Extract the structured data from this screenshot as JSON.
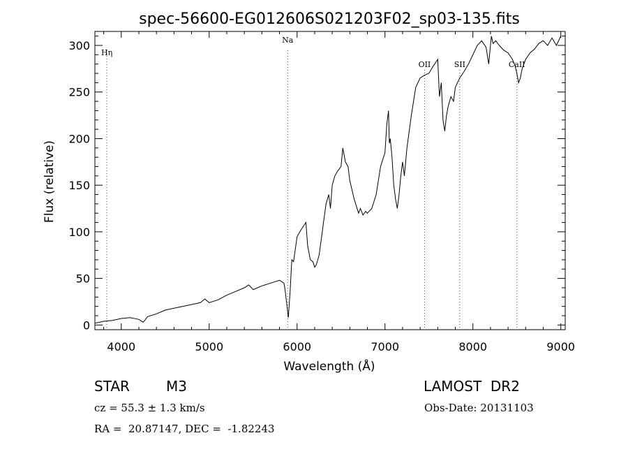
{
  "chart_data": {
    "type": "line",
    "title": "spec-56600-EG012606S021203F02_sp03-135.fits",
    "xlabel": "Wavelength (Å)",
    "ylabel": "Flux (relative)",
    "xlim": [
      3700,
      9050
    ],
    "ylim": [
      -5,
      315
    ],
    "xticks": [
      "4000",
      "5000",
      "6000",
      "7000",
      "8000",
      "9000"
    ],
    "yticks": [
      "0",
      "50",
      "100",
      "150",
      "200",
      "250",
      "300"
    ],
    "grid": false,
    "line_color": "#000000",
    "series": [
      {
        "x": [
          3700,
          3800,
          3900,
          4000,
          4100,
          4200,
          4250,
          4300,
          4400,
          4500,
          4600,
          4700,
          4800,
          4900,
          4950,
          5000,
          5100,
          5200,
          5300,
          5400,
          5450,
          5500,
          5600,
          5700,
          5800,
          5850,
          5860,
          5880,
          5900,
          5920,
          5940,
          5960,
          6000,
          6050,
          6100,
          6120,
          6150,
          6180,
          6200,
          6220,
          6250,
          6280,
          6300,
          6330,
          6360,
          6380,
          6400,
          6430,
          6460,
          6500,
          6520,
          6550,
          6580,
          6600,
          6650,
          6700,
          6720,
          6750,
          6780,
          6800,
          6850,
          6900,
          6950,
          7000,
          7020,
          7040,
          7050,
          7060,
          7080,
          7100,
          7120,
          7140,
          7160,
          7180,
          7200,
          7220,
          7250,
          7300,
          7350,
          7400,
          7450,
          7500,
          7550,
          7580,
          7600,
          7620,
          7640,
          7660,
          7680,
          7700,
          7720,
          7750,
          7780,
          7800,
          7850,
          7900,
          7950,
          8000,
          8050,
          8100,
          8150,
          8180,
          8200,
          8210,
          8230,
          8260,
          8300,
          8350,
          8400,
          8450,
          8480,
          8500,
          8520,
          8540,
          8560,
          8600,
          8650,
          8700,
          8750,
          8800,
          8850,
          8900,
          8950,
          9000
        ],
        "y": [
          2,
          4,
          5,
          7,
          8,
          6,
          3,
          9,
          12,
          16,
          18,
          20,
          22,
          24,
          28,
          24,
          27,
          32,
          36,
          40,
          43,
          38,
          42,
          45,
          48,
          45,
          40,
          25,
          8,
          35,
          70,
          68,
          95,
          103,
          110,
          85,
          70,
          68,
          62,
          65,
          75,
          95,
          110,
          130,
          140,
          125,
          150,
          160,
          165,
          170,
          190,
          175,
          170,
          155,
          135,
          120,
          125,
          118,
          122,
          120,
          125,
          140,
          170,
          185,
          215,
          230,
          195,
          200,
          180,
          150,
          135,
          125,
          140,
          160,
          175,
          160,
          190,
          225,
          255,
          265,
          268,
          270,
          278,
          282,
          285,
          245,
          260,
          220,
          208,
          225,
          235,
          245,
          240,
          255,
          265,
          272,
          280,
          290,
          300,
          305,
          298,
          280,
          300,
          310,
          302,
          305,
          300,
          295,
          292,
          285,
          278,
          270,
          260,
          265,
          275,
          285,
          292,
          296,
          302,
          305,
          300,
          308,
          300,
          310
        ]
      }
    ],
    "annotations": [
      {
        "label": "Hη",
        "x": 3835,
        "position": "top"
      },
      {
        "label": "Na",
        "x": 5893,
        "position": "top"
      },
      {
        "label": "OII",
        "x": 7450,
        "position": "upper"
      },
      {
        "label": "SII",
        "x": 7850,
        "position": "upper"
      },
      {
        "label": "CaII",
        "x": 8500,
        "position": "upper"
      }
    ]
  },
  "info": {
    "object_class": "STAR",
    "subclass": "M3",
    "survey": "LAMOST  DR2",
    "cz": "cz = 55.3 ± 1.3 km/s",
    "obs_date": "Obs-Date: 20131103",
    "radec": "RA =  20.87147, DEC =  -1.82243"
  }
}
